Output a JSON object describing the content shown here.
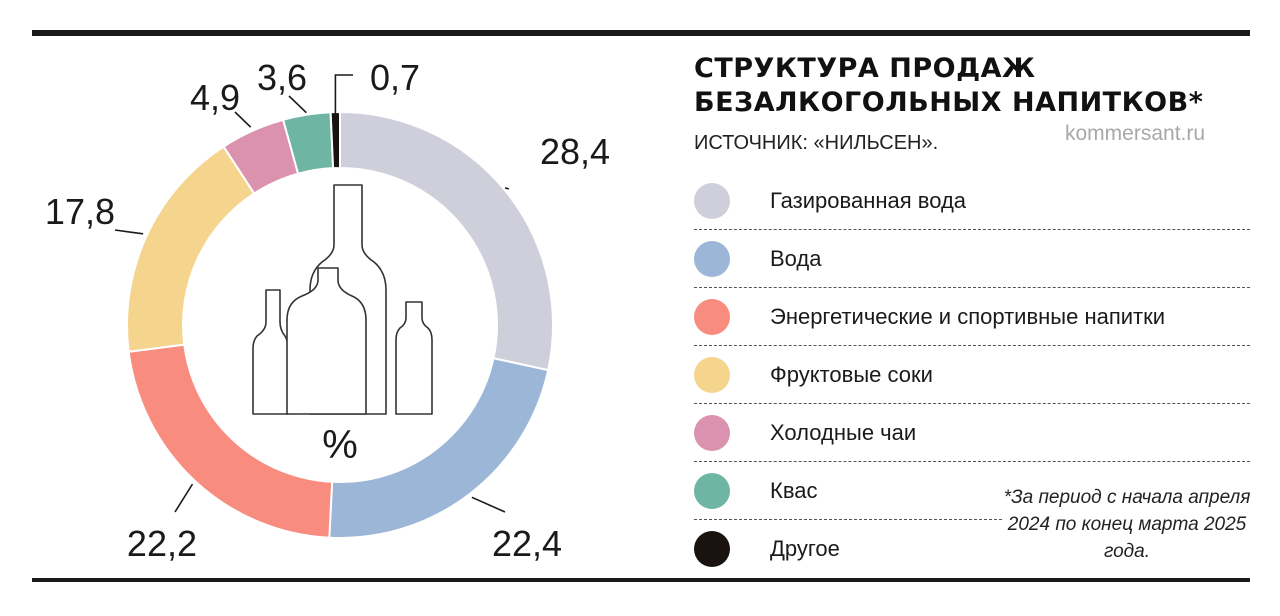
{
  "header": {
    "title": "СТРУКТУРА ПРОДАЖ\nБЕЗАЛКОГОЛЬНЫХ НАПИТКОВ*",
    "source": "ИСТОЧНИК: «НИЛЬСЕН».",
    "watermark": "kommersant.ru"
  },
  "footnote": "*За период с начала апреля 2024 по конец марта 2025 года.",
  "center_label": "%",
  "center_icon": "bottles-icon",
  "chart_data": {
    "type": "pie",
    "donut": true,
    "unit": "%",
    "legend_placement": "right",
    "categories": [
      "Газированная вода",
      "Вода",
      "Энергетические и спортивные напитки",
      "Фруктовые соки",
      "Холодные чаи",
      "Квас",
      "Другое"
    ],
    "values": [
      28.4,
      22.4,
      22.2,
      17.8,
      4.9,
      3.6,
      0.7
    ],
    "value_labels": [
      "28,4",
      "22,4",
      "22,2",
      "17,8",
      "4,9",
      "3,6",
      "0,7"
    ],
    "colors": [
      "#cfcfdc",
      "#9bb6d6",
      "#f88c7e",
      "#f5d48d",
      "#db92ae",
      "#6fb5a4",
      "#1a1210"
    ]
  }
}
